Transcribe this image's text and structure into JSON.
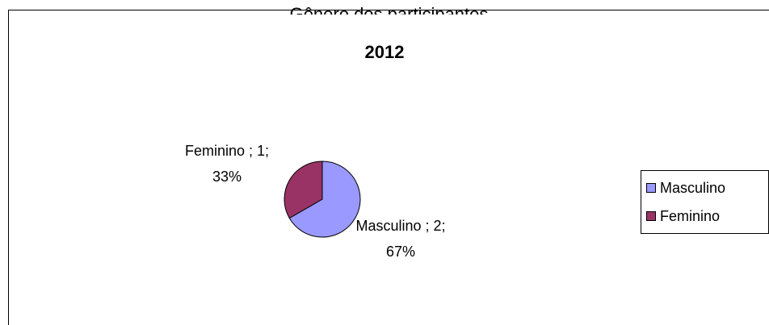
{
  "header": {
    "cut_title": "Gênero dos participantes"
  },
  "chart_data": {
    "type": "pie",
    "title": "2012",
    "categories": [
      "Masculino",
      "Feminino"
    ],
    "values": [
      2,
      1
    ],
    "percentages": [
      "67%",
      "33%"
    ],
    "data_labels": [
      {
        "line1": "Masculino ; 2;",
        "line2": "67%"
      },
      {
        "line1": "Feminino ; 1;",
        "line2": "33%"
      }
    ],
    "colors": [
      "#9999FF",
      "#993366"
    ],
    "legend": {
      "position": "right",
      "items": [
        "Masculino",
        "Feminino"
      ]
    }
  }
}
